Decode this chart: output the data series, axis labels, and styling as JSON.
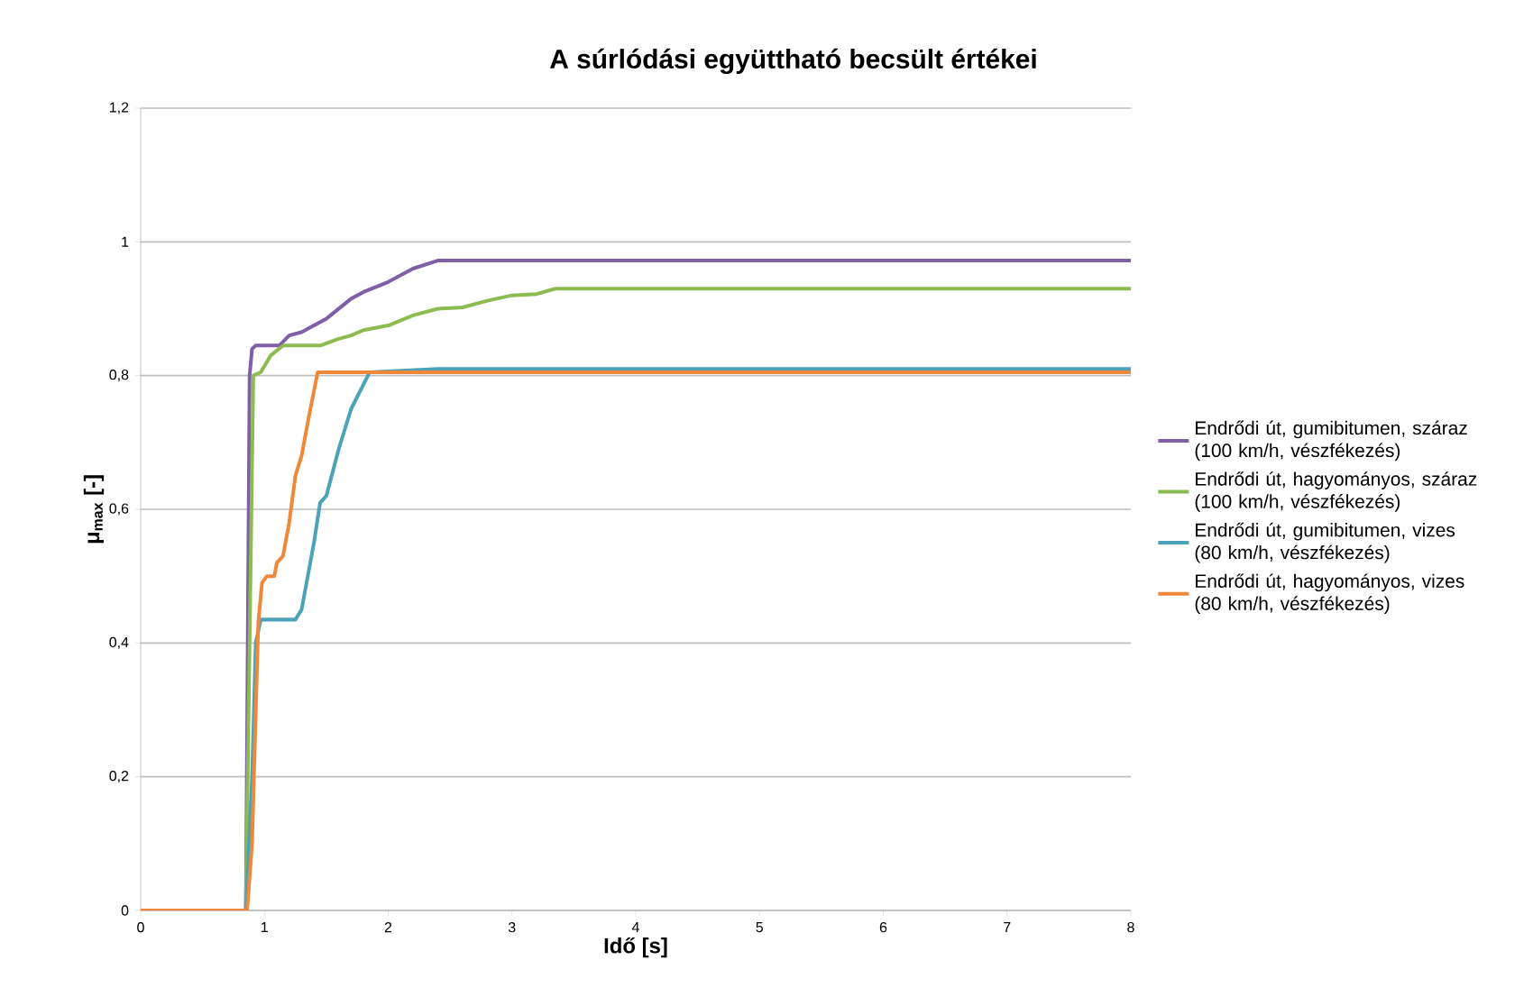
{
  "chart_data": {
    "type": "line",
    "title": "**A súrlódási együttható becsült értékei**",
    "xlabel": "**Idő [s]**",
    "ylabel": "**μ$_{max}$ [-]**",
    "xlim": [
      0,
      8
    ],
    "xticks": [
      0,
      1,
      2,
      3,
      4,
      5,
      6,
      7,
      8
    ],
    "ylim": [
      0,
      1.2
    ],
    "yticks": [
      0,
      {
        "value": 0.2,
        "label": "0,2"
      },
      {
        "value": 0.4,
        "label": "0,4"
      },
      {
        "value": 0.6,
        "label": "0,6"
      },
      {
        "value": 0.8,
        "label": "0,8"
      },
      1,
      {
        "value": 1.2,
        "label": "1,2"
      }
    ],
    "grid": "y",
    "legend": "right",
    "marker": "none",
    "line_style": "solid",
    "series": [
      {
        "name": "Endrődi út, gumibitumen, száraz (100 km/h, vészfékezés)",
        "color": "#7f5fa8",
        "x": [
          0,
          0.85,
          0.88,
          0.9,
          0.93,
          1.12,
          1.2,
          1.3,
          1.4,
          1.5,
          1.6,
          1.7,
          1.8,
          2.0,
          2.2,
          2.4,
          8
        ],
        "values": [
          0,
          0,
          0.8,
          0.84,
          0.845,
          0.845,
          0.86,
          0.865,
          0.875,
          0.885,
          0.9,
          0.915,
          0.925,
          0.94,
          0.96,
          0.972,
          0.972
        ]
      },
      {
        "name": "Endrődi út, hagyományos, száraz (100 km/h, vészfékezés)",
        "color": "#8cbc4f",
        "x": [
          0,
          0.85,
          0.91,
          0.97,
          1.05,
          1.15,
          1.45,
          1.6,
          1.7,
          1.8,
          2.0,
          2.2,
          2.4,
          2.6,
          2.8,
          3.0,
          3.2,
          3.35,
          8
        ],
        "values": [
          0,
          0,
          0.8,
          0.805,
          0.83,
          0.845,
          0.845,
          0.855,
          0.86,
          0.868,
          0.875,
          0.89,
          0.9,
          0.902,
          0.912,
          0.92,
          0.922,
          0.93,
          0.93
        ]
      },
      {
        "name": "Endrődi út, gumibitumen, vizes (80 km/h, vészfékezés)",
        "color": "#4aa3b8",
        "x": [
          0,
          0.85,
          0.9,
          0.93,
          0.97,
          1.25,
          1.3,
          1.35,
          1.4,
          1.45,
          1.5,
          1.6,
          1.7,
          1.85,
          2.4,
          8
        ],
        "values": [
          0,
          0,
          0.2,
          0.4,
          0.435,
          0.435,
          0.45,
          0.5,
          0.55,
          0.61,
          0.62,
          0.69,
          0.75,
          0.805,
          0.81,
          0.81
        ]
      },
      {
        "name": "Endrődi út, hagyományos, vizes (80 km/h, vészfékezés)",
        "color": "#f0883a",
        "x": [
          0,
          0.86,
          0.9,
          0.95,
          0.98,
          1.02,
          1.08,
          1.1,
          1.15,
          1.2,
          1.25,
          1.3,
          1.35,
          1.43,
          8
        ],
        "values": [
          0,
          0,
          0.1,
          0.43,
          0.49,
          0.5,
          0.5,
          0.52,
          0.53,
          0.58,
          0.65,
          0.68,
          0.73,
          0.805,
          0.805
        ]
      }
    ]
  }
}
